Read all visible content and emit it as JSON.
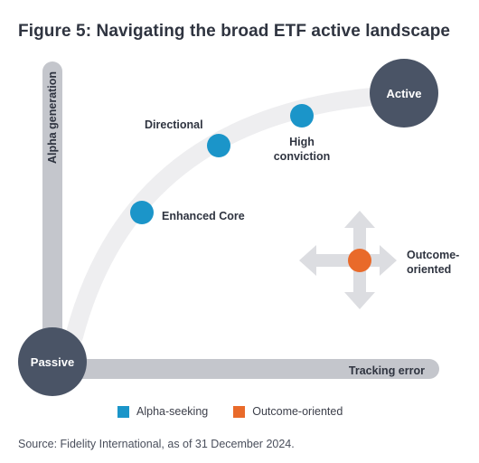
{
  "title": "Figure 5: Navigating the broad ETF active landscape",
  "axes": {
    "y_label": "Alpha generation",
    "x_label": "Tracking error"
  },
  "nodes": {
    "passive": "Passive",
    "active": "Active",
    "enhanced_core": "Enhanced Core",
    "directional": "Directional",
    "high_conviction_line1": "High",
    "high_conviction_line2": "conviction",
    "outcome_line1": "Outcome-",
    "outcome_line2": "oriented"
  },
  "legend": [
    {
      "label": "Alpha-seeking",
      "color": "#1b95c9"
    },
    {
      "label": "Outcome-oriented",
      "color": "#e96a2a"
    }
  ],
  "source": "Source: Fidelity International, as of 31 December 2024.",
  "colors": {
    "axis": "#c4c6cc",
    "curve": "#eeeef0",
    "dark_circle": "#4a5466",
    "alpha_seeking": "#1b95c9",
    "outcome_oriented": "#e96a2a",
    "arrows": "#dcdde1"
  }
}
